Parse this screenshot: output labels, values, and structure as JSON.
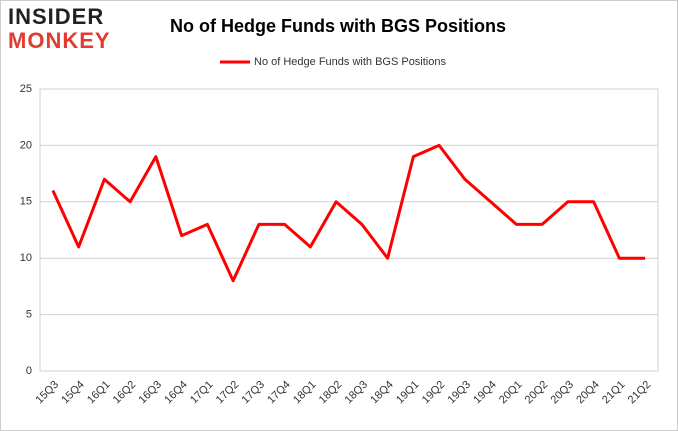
{
  "logo": {
    "top": "INSIDER",
    "bottom": "MONKEY"
  },
  "chart_data": {
    "type": "line",
    "title": "No of Hedge Funds with BGS Positions",
    "categories": [
      "15Q3",
      "15Q4",
      "16Q1",
      "16Q2",
      "16Q3",
      "16Q4",
      "17Q1",
      "17Q2",
      "17Q3",
      "17Q4",
      "18Q1",
      "18Q2",
      "18Q3",
      "18Q4",
      "19Q1",
      "19Q2",
      "19Q3",
      "19Q4",
      "20Q1",
      "20Q2",
      "20Q3",
      "20Q4",
      "21Q1",
      "21Q2"
    ],
    "series": [
      {
        "name": "No of Hedge Funds with BGS Positions",
        "color": "#ff0000",
        "values": [
          16,
          11,
          17,
          15,
          19,
          12,
          13,
          8,
          13,
          13,
          11,
          15,
          13,
          10,
          19,
          20,
          17,
          15,
          13,
          13,
          15,
          15,
          10,
          10
        ]
      }
    ],
    "ylim": [
      0,
      25
    ],
    "yticks": [
      0,
      5,
      10,
      15,
      20,
      25
    ],
    "grid": true,
    "legend": "top"
  }
}
